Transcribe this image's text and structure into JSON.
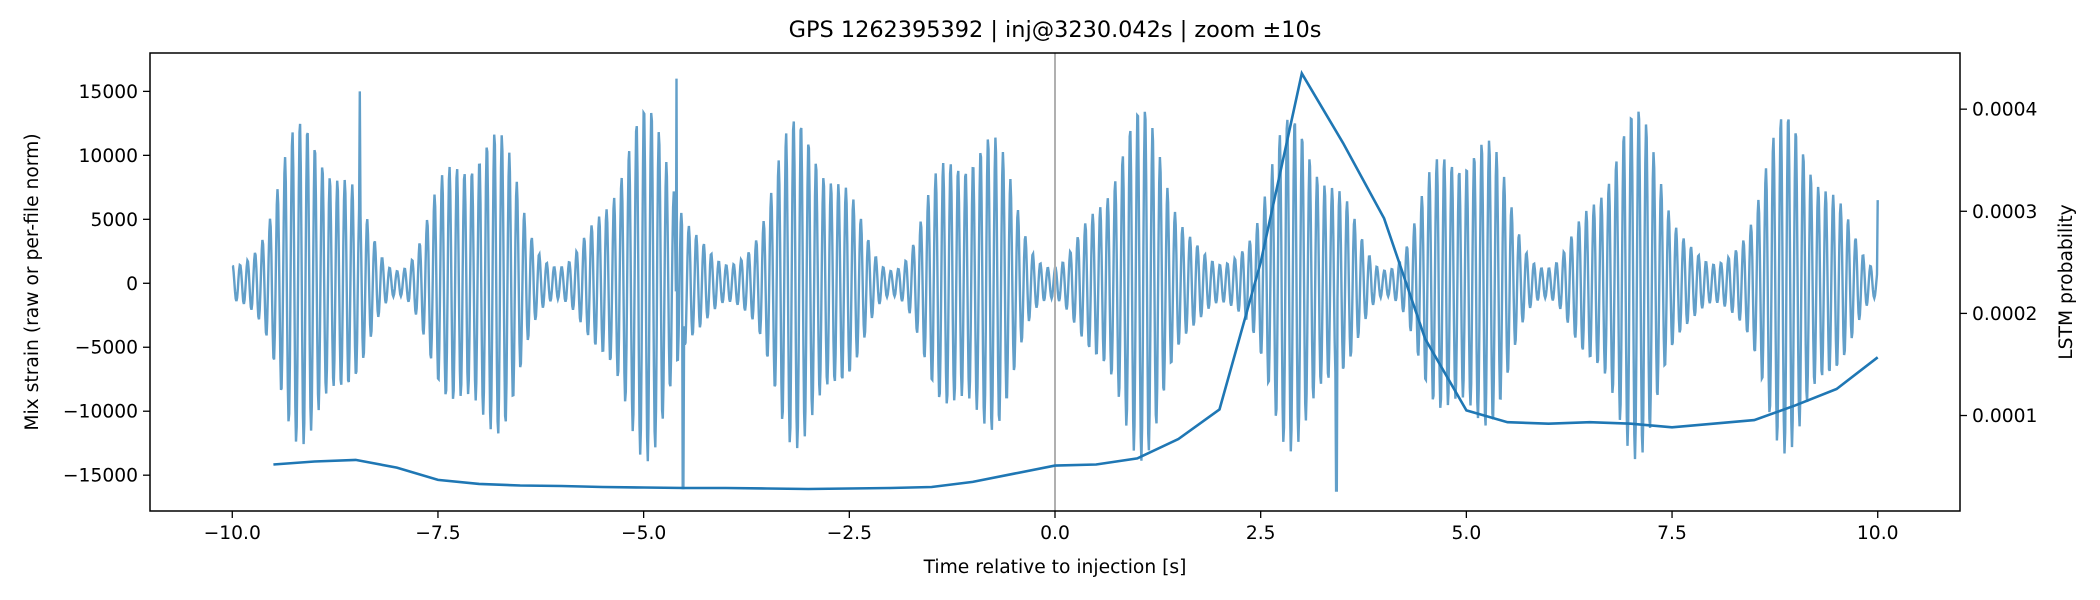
{
  "chart_data": {
    "type": "line",
    "title": "GPS 1262395392 | inj@3230.042s | zoom ±10s",
    "xlabel": "Time relative to injection [s]",
    "ylabel": "Mix strain (raw or per-file norm)",
    "y2label": "LSTM probability",
    "xlim": [
      -11.0,
      11.0
    ],
    "ylim": [
      -17800,
      18000
    ],
    "y2lim": [
      6.5e-06,
      0.000455
    ],
    "xticks": [
      -10.0,
      -7.5,
      -5.0,
      -2.5,
      0.0,
      2.5,
      5.0,
      7.5,
      10.0
    ],
    "xtick_labels": [
      "−10.0",
      "−7.5",
      "−5.0",
      "−2.5",
      "0.0",
      "2.5",
      "5.0",
      "7.5",
      "10.0"
    ],
    "yticks": [
      -15000,
      -10000,
      -5000,
      0,
      5000,
      10000,
      15000
    ],
    "ytick_labels": [
      "−15000",
      "−10000",
      "−5000",
      "0",
      "5000",
      "10000",
      "15000"
    ],
    "y2ticks": [
      0.0001,
      0.0002,
      0.0003,
      0.0004
    ],
    "y2tick_labels": [
      "0.0001",
      "0.0002",
      "0.0003",
      "0.0004"
    ],
    "grid": false,
    "injection_marker_x": 0.0,
    "colors": {
      "strain": "#5a9ac6",
      "probability": "#1f77b4",
      "marker": "#b0b0b0"
    },
    "strain_series": {
      "name": "",
      "x_range": [
        -10.0,
        10.0
      ],
      "samples": 2400,
      "carrier_hz": 11.0,
      "beat_period_s": 2.0,
      "burst_centers": [
        -9.0,
        -7.0,
        -5.0,
        -3.0,
        -1.0,
        1.0,
        3.0,
        5.0,
        7.0,
        9.0
      ],
      "peak_amplitude": 14000,
      "trough_amplitude": 1500,
      "spikes": [
        {
          "x": -4.6,
          "y": 16000
        },
        {
          "x": -4.52,
          "y": -16000
        },
        {
          "x": 3.42,
          "y": -16200
        },
        {
          "x": -8.45,
          "y": 15000
        },
        {
          "x": 10.0,
          "y": 6500
        }
      ]
    },
    "probability_series": {
      "name": "",
      "x": [
        -9.5,
        -9.0,
        -8.5,
        -8.0,
        -7.5,
        -7.0,
        -6.5,
        -6.0,
        -5.5,
        -5.0,
        -4.5,
        -4.0,
        -3.5,
        -3.0,
        -2.5,
        -2.0,
        -1.5,
        -1.0,
        -0.5,
        0.0,
        0.5,
        1.0,
        1.5,
        2.0,
        2.5,
        3.0,
        3.5,
        4.0,
        4.5,
        5.0,
        5.5,
        6.0,
        6.5,
        7.0,
        7.5,
        8.0,
        8.5,
        9.0,
        9.5,
        10.0
      ],
      "y": [
        5.2e-05,
        5.5e-05,
        5.65e-05,
        4.9e-05,
        3.7e-05,
        3.3e-05,
        3.15e-05,
        3.1e-05,
        3e-05,
        2.95e-05,
        2.9e-05,
        2.9e-05,
        2.85e-05,
        2.8e-05,
        2.85e-05,
        2.9e-05,
        3e-05,
        3.5e-05,
        4.3e-05,
        5.1e-05,
        5.2e-05,
        5.8e-05,
        7.7e-05,
        0.000106,
        0.00025,
        0.000435,
        0.000367,
        0.000293,
        0.000175,
        0.000105,
        9.35e-05,
        9.2e-05,
        9.35e-05,
        9.2e-05,
        8.85e-05,
        9.2e-05,
        9.55e-05,
        0.00011,
        0.000126,
        0.000157
      ]
    }
  }
}
